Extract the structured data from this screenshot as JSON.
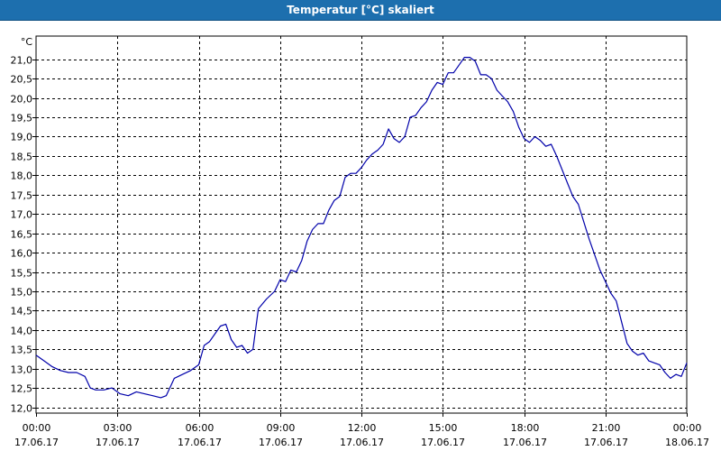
{
  "window": {
    "title": "Temperatur [°C] skaliert"
  },
  "colors": {
    "titlebar": "#1d6fae",
    "line": "#0000aa",
    "grid": "#000000",
    "background": "#ffffff"
  },
  "chart_data": {
    "type": "line",
    "title": "Temperatur [°C] skaliert",
    "ylabel": "°C",
    "xlabel": "",
    "ylim": [
      11.85,
      21.6
    ],
    "xlim": [
      0,
      24
    ],
    "grid": true,
    "legend": "none",
    "y_ticks": [
      "12,0",
      "12,5",
      "13,0",
      "13,5",
      "14,0",
      "14,5",
      "15,0",
      "15,5",
      "16,0",
      "16,5",
      "17,0",
      "17,5",
      "18,0",
      "18,5",
      "19,0",
      "19,5",
      "20,0",
      "20,5",
      "21,0"
    ],
    "y_tick_values": [
      12.0,
      12.5,
      13.0,
      13.5,
      14.0,
      14.5,
      15.0,
      15.5,
      16.0,
      16.5,
      17.0,
      17.5,
      18.0,
      18.5,
      19.0,
      19.5,
      20.0,
      20.5,
      21.0
    ],
    "x_ticks": [
      {
        "time": "00:00",
        "date": "17.06.17"
      },
      {
        "time": "03:00",
        "date": "17.06.17"
      },
      {
        "time": "06:00",
        "date": "17.06.17"
      },
      {
        "time": "09:00",
        "date": "17.06.17"
      },
      {
        "time": "12:00",
        "date": "17.06.17"
      },
      {
        "time": "15:00",
        "date": "17.06.17"
      },
      {
        "time": "18:00",
        "date": "17.06.17"
      },
      {
        "time": "21:00",
        "date": "17.06.17"
      },
      {
        "time": "00:00",
        "date": "18.06.17"
      }
    ],
    "x_tick_hours": [
      0,
      3,
      6,
      9,
      12,
      15,
      18,
      21,
      24
    ],
    "series": [
      {
        "points": [
          [
            0.0,
            13.35
          ],
          [
            0.3,
            13.2
          ],
          [
            0.6,
            13.05
          ],
          [
            0.9,
            12.95
          ],
          [
            1.2,
            12.9
          ],
          [
            1.5,
            12.9
          ],
          [
            1.8,
            12.8
          ],
          [
            2.0,
            12.5
          ],
          [
            2.2,
            12.45
          ],
          [
            2.5,
            12.45
          ],
          [
            2.8,
            12.5
          ],
          [
            3.1,
            12.35
          ],
          [
            3.4,
            12.3
          ],
          [
            3.7,
            12.4
          ],
          [
            4.0,
            12.35
          ],
          [
            4.3,
            12.3
          ],
          [
            4.6,
            12.25
          ],
          [
            4.8,
            12.3
          ],
          [
            5.1,
            12.75
          ],
          [
            5.4,
            12.85
          ],
          [
            5.7,
            12.95
          ],
          [
            6.0,
            13.1
          ],
          [
            6.2,
            13.6
          ],
          [
            6.4,
            13.7
          ],
          [
            6.6,
            13.9
          ],
          [
            6.8,
            14.1
          ],
          [
            7.0,
            14.15
          ],
          [
            7.2,
            13.75
          ],
          [
            7.4,
            13.55
          ],
          [
            7.6,
            13.6
          ],
          [
            7.8,
            13.4
          ],
          [
            8.0,
            13.5
          ],
          [
            8.2,
            14.55
          ],
          [
            8.5,
            14.8
          ],
          [
            8.8,
            15.0
          ],
          [
            9.0,
            15.3
          ],
          [
            9.2,
            15.25
          ],
          [
            9.4,
            15.55
          ],
          [
            9.6,
            15.5
          ],
          [
            9.8,
            15.8
          ],
          [
            10.0,
            16.3
          ],
          [
            10.2,
            16.6
          ],
          [
            10.4,
            16.75
          ],
          [
            10.6,
            16.75
          ],
          [
            10.8,
            17.1
          ],
          [
            11.0,
            17.35
          ],
          [
            11.2,
            17.45
          ],
          [
            11.4,
            17.95
          ],
          [
            11.6,
            18.05
          ],
          [
            11.8,
            18.05
          ],
          [
            12.0,
            18.2
          ],
          [
            12.2,
            18.4
          ],
          [
            12.4,
            18.55
          ],
          [
            12.6,
            18.65
          ],
          [
            12.8,
            18.8
          ],
          [
            13.0,
            19.2
          ],
          [
            13.2,
            18.95
          ],
          [
            13.4,
            18.85
          ],
          [
            13.6,
            19.0
          ],
          [
            13.8,
            19.5
          ],
          [
            14.0,
            19.55
          ],
          [
            14.2,
            19.75
          ],
          [
            14.4,
            19.9
          ],
          [
            14.6,
            20.2
          ],
          [
            14.8,
            20.4
          ],
          [
            15.0,
            20.35
          ],
          [
            15.2,
            20.65
          ],
          [
            15.4,
            20.65
          ],
          [
            15.6,
            20.85
          ],
          [
            15.8,
            21.05
          ],
          [
            16.0,
            21.05
          ],
          [
            16.2,
            20.95
          ],
          [
            16.4,
            20.6
          ],
          [
            16.6,
            20.6
          ],
          [
            16.8,
            20.5
          ],
          [
            17.0,
            20.2
          ],
          [
            17.2,
            20.05
          ],
          [
            17.4,
            19.9
          ],
          [
            17.6,
            19.65
          ],
          [
            17.8,
            19.25
          ],
          [
            18.0,
            18.95
          ],
          [
            18.2,
            18.85
          ],
          [
            18.4,
            19.0
          ],
          [
            18.6,
            18.9
          ],
          [
            18.8,
            18.75
          ],
          [
            19.0,
            18.8
          ],
          [
            19.2,
            18.5
          ],
          [
            19.4,
            18.15
          ],
          [
            19.6,
            17.8
          ],
          [
            19.8,
            17.45
          ],
          [
            20.0,
            17.25
          ],
          [
            20.2,
            16.8
          ],
          [
            20.4,
            16.35
          ],
          [
            20.6,
            15.95
          ],
          [
            20.8,
            15.55
          ],
          [
            21.0,
            15.25
          ],
          [
            21.2,
            14.95
          ],
          [
            21.4,
            14.75
          ],
          [
            21.6,
            14.2
          ],
          [
            21.8,
            13.65
          ],
          [
            22.0,
            13.45
          ],
          [
            22.2,
            13.35
          ],
          [
            22.4,
            13.4
          ],
          [
            22.6,
            13.2
          ],
          [
            22.8,
            13.15
          ],
          [
            23.0,
            13.1
          ],
          [
            23.2,
            12.9
          ],
          [
            23.4,
            12.75
          ],
          [
            23.6,
            12.85
          ],
          [
            23.8,
            12.8
          ],
          [
            24.0,
            13.15
          ]
        ]
      }
    ]
  }
}
